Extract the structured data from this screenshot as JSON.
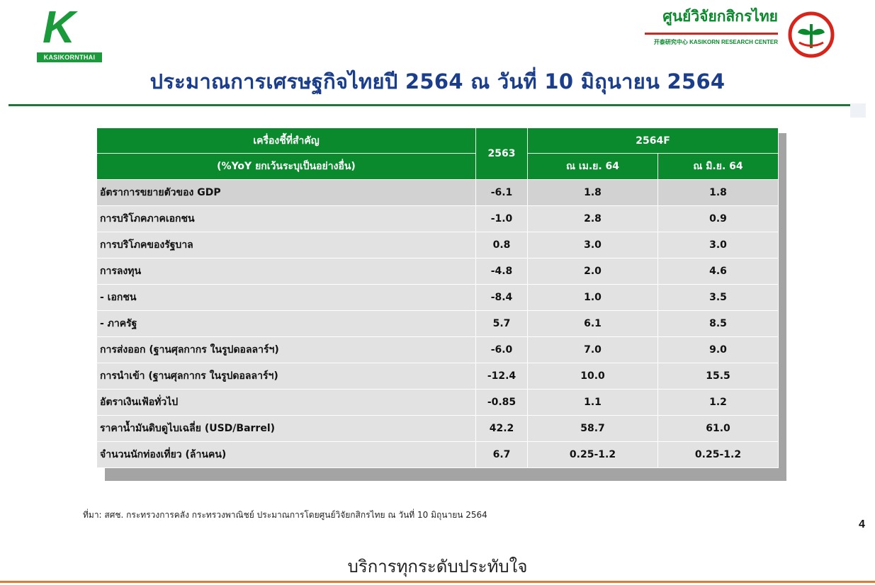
{
  "logos": {
    "left_mark": "K",
    "left_brand": "KASIKORNTHAI",
    "right_name": "ศูนย์วิจัยกสิกรไทย",
    "right_sub": "开泰研究中心 KASIKORN RESEARCH CENTER",
    "colors": {
      "green": "#0a8a2c",
      "red": "#d8251c"
    }
  },
  "title": "ประมาณการเศรษฐกิจไทยปี 2564 ณ วันที่ 10 มิถุนายน 2564",
  "table": {
    "header": {
      "indicator_line1": "เครื่องชี้ที่สำคัญ",
      "indicator_line2": "(%YoY ยกเว้นระบุเป็นอย่างอื่น)",
      "year_actual": "2563",
      "forecast_group": "2564F",
      "forecast_apr": "ณ เม.ย. 64",
      "forecast_jun": "ณ มิ.ย. 64"
    },
    "rows": [
      {
        "label": "อัตราการขยายตัวของ GDP",
        "y2563": "-6.1",
        "apr": "1.8",
        "jun": "1.8"
      },
      {
        "label": "การบริโภคภาคเอกชน",
        "y2563": "-1.0",
        "apr": "2.8",
        "jun": "0.9"
      },
      {
        "label": "การบริโภคของรัฐบาล",
        "y2563": "0.8",
        "apr": "3.0",
        "jun": "3.0"
      },
      {
        "label": "การลงทุน",
        "y2563": "-4.8",
        "apr": "2.0",
        "jun": "4.6"
      },
      {
        "label": " - เอกชน",
        "y2563": "-8.4",
        "apr": "1.0",
        "jun": "3.5"
      },
      {
        "label": " - ภาครัฐ",
        "y2563": "5.7",
        "apr": "6.1",
        "jun": "8.5"
      },
      {
        "label": "การส่งออก (ฐานศุลกากร ในรูปดอลลาร์ฯ)",
        "y2563": "-6.0",
        "apr": "7.0",
        "jun": "9.0"
      },
      {
        "label": "การนำเข้า (ฐานศุลกากร ในรูปดอลลาร์ฯ)",
        "y2563": "-12.4",
        "apr": "10.0",
        "jun": "15.5"
      },
      {
        "label": "อัตราเงินเฟ้อทั่วไป",
        "y2563": "-0.85",
        "apr": "1.1",
        "jun": "1.2"
      },
      {
        "label": "ราคาน้ำมันดิบดูไบเฉลี่ย (USD/Barrel)",
        "y2563": "42.2",
        "apr": "58.7",
        "jun": "61.0"
      },
      {
        "label": "จำนวนนักท่องเที่ยว (ล้านคน)",
        "y2563": "6.7",
        "apr": "0.25-1.2",
        "jun": "0.25-1.2"
      }
    ]
  },
  "source_note": "ที่มา: สศช. กระทรวงการคลัง กระทรวงพาณิชย์ ประมาณการโดยศูนย์วิจัยกสิกรไทย ณ วันที่ 10 มิถุนายน 2564",
  "page_number": "4",
  "slogan": "บริการทุกระดับประทับใจ"
}
